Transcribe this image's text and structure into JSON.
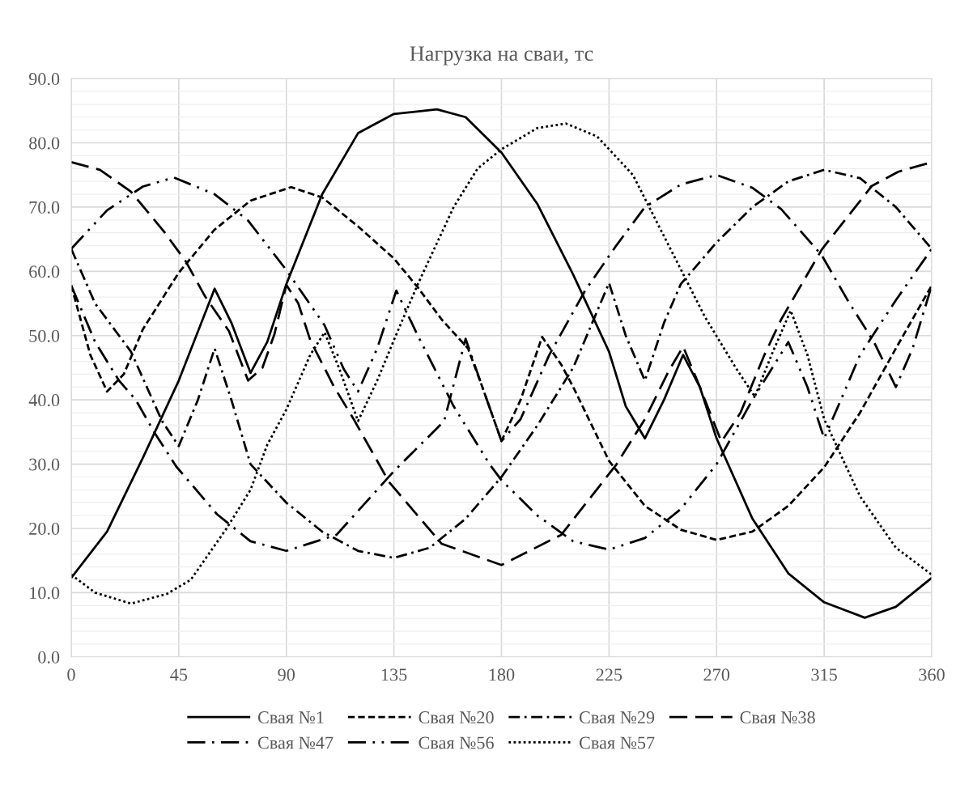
{
  "chart_data": {
    "type": "line",
    "title": "Нагрузка на сваи, тс",
    "xlim": [
      0,
      360
    ],
    "xticks": [
      0,
      45,
      90,
      135,
      180,
      225,
      270,
      315,
      360
    ],
    "ylim": [
      0,
      90
    ],
    "yticks": [
      {
        "value": 0,
        "label": "0.0"
      },
      {
        "value": 2,
        "label": null
      },
      {
        "value": 4,
        "label": null
      },
      {
        "value": 6,
        "label": null
      },
      {
        "value": 8,
        "label": null
      },
      {
        "value": 10,
        "label": "10.0"
      },
      {
        "value": 12,
        "label": null
      },
      {
        "value": 14,
        "label": null
      },
      {
        "value": 16,
        "label": null
      },
      {
        "value": 18,
        "label": null
      },
      {
        "value": 20,
        "label": "20.0"
      },
      {
        "value": 22,
        "label": null
      },
      {
        "value": 24,
        "label": null
      },
      {
        "value": 26,
        "label": null
      },
      {
        "value": 28,
        "label": null
      },
      {
        "value": 30,
        "label": "30.0"
      },
      {
        "value": 32,
        "label": null
      },
      {
        "value": 34,
        "label": null
      },
      {
        "value": 36,
        "label": null
      },
      {
        "value": 38,
        "label": null
      },
      {
        "value": 40,
        "label": "40.0"
      },
      {
        "value": 42,
        "label": null
      },
      {
        "value": 44,
        "label": null
      },
      {
        "value": 46,
        "label": null
      },
      {
        "value": 48,
        "label": null
      },
      {
        "value": 50,
        "label": "50.0"
      },
      {
        "value": 52,
        "label": null
      },
      {
        "value": 54,
        "label": null
      },
      {
        "value": 56,
        "label": null
      },
      {
        "value": 58,
        "label": null
      },
      {
        "value": 60,
        "label": "60.0"
      },
      {
        "value": 62,
        "label": null
      },
      {
        "value": 64,
        "label": null
      },
      {
        "value": 66,
        "label": null
      },
      {
        "value": 68,
        "label": null
      },
      {
        "value": 70,
        "label": "70.0"
      },
      {
        "value": 72,
        "label": null
      },
      {
        "value": 74,
        "label": null
      },
      {
        "value": 76,
        "label": null
      },
      {
        "value": 78,
        "label": null
      },
      {
        "value": 80,
        "label": "80.0"
      },
      {
        "value": 82,
        "label": null
      },
      {
        "value": 84,
        "label": null
      },
      {
        "value": 86,
        "label": null
      },
      {
        "value": 88,
        "label": null
      },
      {
        "value": 90,
        "label": "90.0"
      }
    ],
    "grid": true,
    "legend": "bottom",
    "marker": "none",
    "series": [
      {
        "name": "Свая №1",
        "color": "#000000",
        "line_style": "solid",
        "x": [
          0,
          15,
          30,
          45,
          60,
          67,
          75,
          82,
          90,
          105,
          120,
          135,
          153,
          165,
          180,
          195,
          210,
          225,
          232,
          240,
          248,
          256,
          263,
          270,
          285,
          300,
          315,
          332,
          345,
          360
        ],
        "values": [
          12.3,
          19.5,
          31,
          43,
          57.3,
          52,
          44.2,
          49,
          58,
          72,
          81.5,
          84.5,
          85.2,
          84,
          78.5,
          70.5,
          59.5,
          47.5,
          39,
          34,
          40,
          47,
          42,
          34,
          21.5,
          13,
          8.5,
          6.1,
          7.8,
          12.3
        ]
      },
      {
        "name": "Свая №20",
        "color": "#000000",
        "line_style": "dashed",
        "x": [
          0,
          8,
          15,
          22,
          30,
          45,
          60,
          75,
          92,
          105,
          120,
          135,
          145,
          155,
          166,
          172,
          180,
          188,
          197,
          205,
          210,
          225,
          240,
          255,
          270,
          285,
          300,
          315,
          330,
          345,
          360
        ],
        "values": [
          57.8,
          47,
          41.3,
          44,
          51,
          59.8,
          66.5,
          71,
          73.1,
          71.5,
          67,
          62,
          57.5,
          52.5,
          48,
          42,
          33.6,
          40,
          49.8,
          45.5,
          42,
          30.5,
          23.5,
          19.8,
          18.2,
          19.5,
          23.5,
          29.5,
          38,
          48,
          57.8
        ]
      },
      {
        "name": "Свая №29",
        "color": "#000000",
        "line_style": "dashdot",
        "x": [
          0,
          10,
          25,
          38,
          45,
          53,
          60,
          67,
          75,
          90,
          105,
          120,
          135,
          150,
          165,
          180,
          195,
          210,
          218,
          225,
          232,
          240,
          248,
          255,
          270,
          285,
          300,
          315,
          330,
          345,
          360
        ],
        "values": [
          63.5,
          55,
          47.5,
          36.7,
          32.8,
          40,
          48,
          40,
          30,
          24,
          19.5,
          16.5,
          15.4,
          17,
          21.5,
          28,
          36,
          45,
          52,
          58.2,
          50,
          43,
          52,
          58,
          64.5,
          70,
          74,
          75.8,
          74.5,
          70,
          63.5
        ]
      },
      {
        "name": "Свая №38",
        "color": "#000000",
        "line_style": "longdash",
        "x": [
          0,
          12,
          25,
          39,
          48,
          56,
          66,
          74,
          80,
          85,
          90,
          95,
          100,
          110,
          118,
          133,
          155,
          180,
          205,
          228,
          240,
          250,
          256,
          263,
          272,
          280,
          290,
          297,
          314,
          335,
          346,
          360
        ],
        "values": [
          77,
          75.8,
          72.4,
          66.1,
          61.5,
          56.1,
          50.7,
          43,
          45,
          50.2,
          57.9,
          55,
          49.3,
          42,
          37.1,
          27.2,
          17.6,
          14.3,
          19,
          29.9,
          37,
          44.5,
          48.3,
          42,
          33.5,
          38,
          47,
          52.5,
          63.4,
          73.3,
          75.5,
          77
        ]
      },
      {
        "name": "Свая №47",
        "color": "#000000",
        "line_style": "longdashdot",
        "x": [
          0,
          10,
          20,
          27,
          35,
          44,
          61,
          75,
          90,
          111,
          135,
          156,
          165,
          172,
          180,
          188,
          200,
          215,
          228,
          240,
          255,
          270,
          285,
          297,
          314,
          325,
          336,
          345,
          352,
          360
        ],
        "values": [
          57.8,
          49,
          43,
          40,
          34.8,
          29.6,
          22.2,
          18,
          16.5,
          19,
          28.9,
          36.7,
          49.5,
          42,
          33.6,
          37,
          47,
          57,
          64,
          70,
          73.5,
          75,
          73,
          69.7,
          62.5,
          55.4,
          48.9,
          42,
          48,
          57.8
        ]
      },
      {
        "name": "Свая №56",
        "color": "#000000",
        "line_style": "longdashdotdot",
        "x": [
          0,
          15,
          30,
          43,
          60,
          74,
          90,
          106,
          114,
          120,
          128,
          136,
          145,
          160,
          175,
          180,
          195,
          210,
          225,
          240,
          255,
          270,
          285,
          300,
          308,
          315,
          322,
          330,
          345,
          360
        ],
        "values": [
          63.5,
          69.5,
          73.2,
          74.6,
          72,
          67.9,
          60.2,
          51.6,
          44.8,
          41.3,
          48,
          57,
          50,
          39,
          30,
          27.5,
          22,
          18,
          16.7,
          18.5,
          23,
          30,
          40,
          49,
          42,
          34,
          40,
          47,
          55.5,
          63.5
        ]
      },
      {
        "name": "Свая №57",
        "color": "#000000",
        "line_style": "dotted",
        "x": [
          0,
          10,
          25,
          40,
          50,
          65,
          75,
          82,
          90,
          100,
          106,
          112,
          120,
          128,
          135,
          145,
          160,
          170,
          180,
          195,
          207,
          220,
          235,
          250,
          265,
          278,
          286,
          293,
          301,
          308,
          315,
          330,
          345,
          360
        ],
        "values": [
          12.8,
          10,
          8.3,
          9.8,
          12,
          20,
          26,
          33,
          38.5,
          47,
          50.5,
          45,
          36.7,
          43,
          49.3,
          58,
          70,
          76,
          79,
          82.3,
          83,
          81,
          75,
          64,
          53,
          45,
          40.5,
          47,
          53.9,
          47,
          37,
          25,
          17,
          12.8
        ]
      }
    ]
  }
}
